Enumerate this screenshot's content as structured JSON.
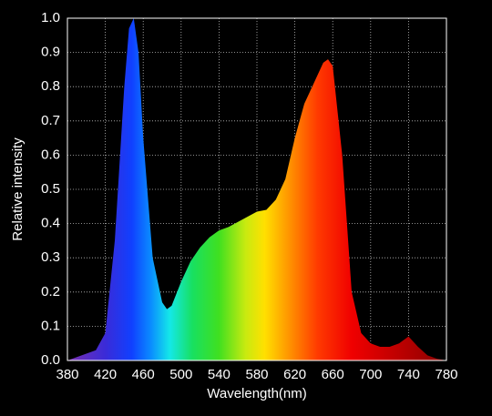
{
  "chart_data": {
    "type": "area",
    "x_label": "Wavelength(nm)",
    "y_label": "Relative intensity",
    "x": [
      380,
      390,
      400,
      410,
      420,
      430,
      440,
      445,
      450,
      455,
      460,
      470,
      480,
      485,
      490,
      500,
      510,
      520,
      530,
      540,
      550,
      560,
      570,
      580,
      590,
      600,
      610,
      620,
      630,
      640,
      650,
      655,
      660,
      670,
      680,
      690,
      700,
      710,
      720,
      730,
      740,
      750,
      760,
      770,
      780
    ],
    "values": [
      0.0,
      0.01,
      0.02,
      0.03,
      0.08,
      0.35,
      0.8,
      0.97,
      1.0,
      0.9,
      0.65,
      0.3,
      0.17,
      0.15,
      0.16,
      0.23,
      0.29,
      0.33,
      0.36,
      0.38,
      0.39,
      0.405,
      0.42,
      0.435,
      0.44,
      0.47,
      0.53,
      0.65,
      0.75,
      0.81,
      0.87,
      0.88,
      0.86,
      0.6,
      0.2,
      0.08,
      0.05,
      0.04,
      0.04,
      0.05,
      0.07,
      0.04,
      0.015,
      0.005,
      0.0
    ],
    "xlim": [
      380,
      780
    ],
    "xticks": [
      380,
      420,
      460,
      500,
      540,
      580,
      620,
      660,
      700,
      740,
      780
    ],
    "ylim": [
      0,
      1
    ],
    "yticks": [
      {
        "value": 0,
        "label": "0.0"
      },
      0.1,
      0.2,
      0.3,
      0.4,
      0.5,
      0.6,
      0.7,
      0.8,
      0.9,
      {
        "value": 1,
        "label": "1.0"
      }
    ],
    "grid": true
  }
}
